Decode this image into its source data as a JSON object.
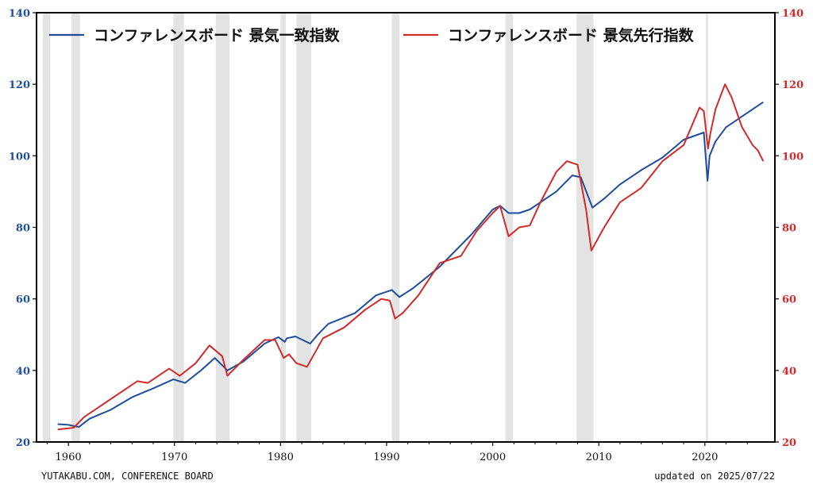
{
  "source": "YUTAKABU.COM, CONFERENCE BOARD",
  "updated": "updated on 2025/07/22",
  "colors": {
    "coincident": "#1f4e9c",
    "leading": "#d12a2a",
    "recession": "#d9d9d9"
  },
  "chart_data": {
    "type": "line",
    "title": "",
    "xlim": [
      1957,
      2026.6
    ],
    "ylim_left": [
      20,
      140
    ],
    "ylim_right": [
      20,
      140
    ],
    "x_ticks": [
      "1960",
      "1970",
      "1980",
      "1990",
      "2000",
      "2010",
      "2020"
    ],
    "y_ticks_left": [
      "20",
      "40",
      "60",
      "80",
      "100",
      "120",
      "140"
    ],
    "y_ticks_right": [
      "20",
      "40",
      "60",
      "80",
      "100",
      "120",
      "140"
    ],
    "legend_position": "top",
    "grid": false,
    "recessions": [
      [
        1957.6,
        1958.3
      ],
      [
        1960.3,
        1961.1
      ],
      [
        1969.9,
        1970.9
      ],
      [
        1973.9,
        1975.2
      ],
      [
        1980.0,
        1980.5
      ],
      [
        1981.5,
        1982.9
      ],
      [
        1990.5,
        1991.2
      ],
      [
        2001.2,
        2001.9
      ],
      [
        2007.9,
        2009.5
      ],
      [
        2020.1,
        2020.3
      ]
    ],
    "series": [
      {
        "name": "コンファレンスボード 景気一致指数",
        "axis": "left",
        "x": [
          1959.0,
          1960.0,
          1961.0,
          1962.0,
          1964.0,
          1966.0,
          1968.0,
          1969.9,
          1971.0,
          1972.5,
          1973.8,
          1975.0,
          1976.5,
          1978.5,
          1979.8,
          1980.4,
          1980.6,
          1981.4,
          1982.8,
          1983.5,
          1984.5,
          1987.0,
          1989.0,
          1990.5,
          1991.2,
          1992.5,
          1995.0,
          1998.0,
          2000.0,
          2000.7,
          2001.5,
          2002.5,
          2003.5,
          2006.0,
          2007.5,
          2008.3,
          2009.4,
          2010.5,
          2012.0,
          2014.0,
          2016.0,
          2018.0,
          2019.9,
          2020.25,
          2020.45,
          2021.0,
          2022.0,
          2023.0,
          2024.0,
          2025.5
        ],
        "values": [
          25.0,
          24.8,
          24.2,
          26.5,
          29.0,
          32.5,
          35.0,
          37.5,
          36.5,
          40.0,
          43.5,
          40.0,
          42.5,
          47.5,
          49.3,
          48.0,
          49.0,
          49.5,
          47.5,
          50.0,
          53.0,
          56.0,
          61.0,
          62.5,
          60.5,
          63.0,
          69.0,
          78.0,
          85.0,
          86.0,
          84.0,
          84.0,
          85.0,
          90.0,
          94.5,
          94.0,
          85.5,
          88.0,
          92.0,
          96.0,
          99.5,
          104.5,
          106.5,
          93.0,
          100.0,
          104.0,
          108.0,
          110.0,
          112.0,
          115.0
        ]
      },
      {
        "name": "コンファレンスボード 景気先行指数",
        "axis": "right",
        "x": [
          1959.0,
          1960.5,
          1961.5,
          1963.0,
          1965.0,
          1966.5,
          1967.5,
          1969.5,
          1970.5,
          1972.0,
          1973.3,
          1974.5,
          1975.0,
          1976.5,
          1978.5,
          1979.5,
          1980.3,
          1980.8,
          1981.5,
          1982.5,
          1984.0,
          1986.0,
          1988.0,
          1989.5,
          1990.3,
          1990.8,
          1991.5,
          1993.0,
          1995.0,
          1997.0,
          1998.5,
          2000.0,
          2000.7,
          2001.5,
          2002.5,
          2003.5,
          2004.5,
          2006.0,
          2007.0,
          2008.0,
          2008.8,
          2009.3,
          2010.5,
          2012.0,
          2014.0,
          2016.0,
          2018.0,
          2019.5,
          2019.9,
          2020.3,
          2020.5,
          2021.0,
          2021.9,
          2022.5,
          2023.5,
          2024.5,
          2025.0,
          2025.5
        ],
        "values": [
          23.5,
          24.0,
          27.0,
          30.0,
          34.0,
          37.0,
          36.5,
          40.5,
          38.5,
          42.0,
          47.0,
          44.0,
          38.5,
          43.0,
          48.5,
          48.5,
          43.5,
          44.5,
          42.0,
          41.0,
          49.0,
          52.0,
          57.0,
          60.0,
          59.5,
          54.5,
          56.0,
          61.0,
          70.0,
          72.0,
          79.0,
          84.0,
          86.0,
          77.5,
          80.0,
          80.5,
          87.0,
          95.5,
          98.5,
          97.5,
          85.0,
          73.5,
          80.0,
          87.0,
          91.0,
          98.5,
          103.0,
          113.5,
          112.5,
          102.0,
          106.0,
          113.0,
          120.0,
          116.5,
          108.0,
          103.0,
          101.5,
          98.5
        ]
      }
    ]
  }
}
